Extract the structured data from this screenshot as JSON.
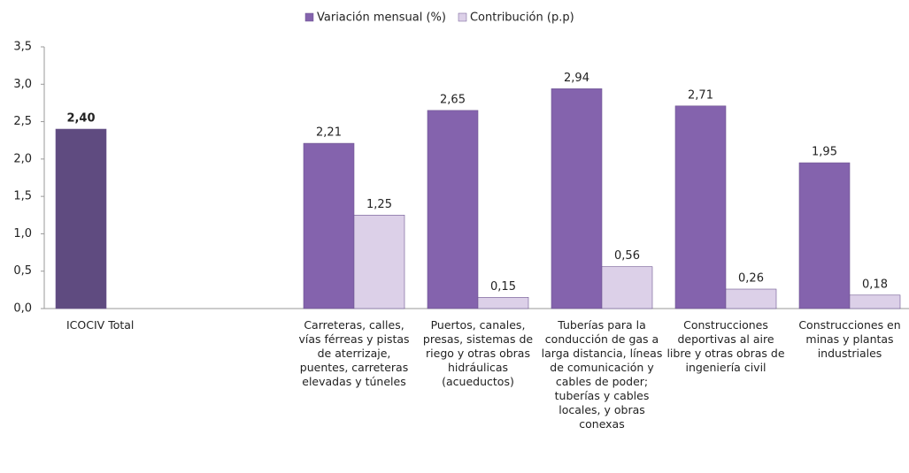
{
  "chart_data": {
    "type": "bar",
    "categories": [
      "ICOCIV Total",
      null,
      "Carreteras, calles, vías férreas y pistas de aterrizaje, puentes, carreteras elevadas y túneles",
      "Puertos, canales, presas, sistemas de riego y otras obras hidráulicas (acueductos)",
      "Tuberías para la conducción de gas a larga distancia, líneas de comunicación y cables de poder; tuberías y cables locales, y obras conexas",
      "Construcciones deportivas al aire libre y otras obras de ingeniería civil",
      "Construcciones  en minas y plantas industriales"
    ],
    "series": [
      {
        "name": "Variación mensual (%)",
        "color": "#8463ad",
        "colors": [
          "#5f4b80",
          "#8463ad",
          "#8463ad",
          "#8463ad",
          "#8463ad",
          "#8463ad",
          "#8463ad"
        ],
        "values": [
          2.4,
          null,
          2.21,
          2.65,
          2.94,
          2.71,
          1.95
        ],
        "value_labels": [
          "2,40",
          null,
          "2,21",
          "2,65",
          "2,94",
          "2,71",
          "1,95"
        ]
      },
      {
        "name": "Contribución (p.p)",
        "color": "#dcd0e8",
        "colors": [
          "#dcd0e8",
          "#dcd0e8",
          "#dcd0e8",
          "#dcd0e8",
          "#dcd0e8",
          "#dcd0e8",
          "#dcd0e8"
        ],
        "values": [
          null,
          null,
          1.25,
          0.15,
          0.56,
          0.26,
          0.18
        ],
        "value_labels": [
          null,
          null,
          "1,25",
          "0,15",
          "0,56",
          "0,26",
          "0,18"
        ]
      }
    ],
    "ylim": [
      0,
      3.5
    ],
    "yticks": [
      {
        "value": 0,
        "label": "0,0"
      },
      {
        "value": 0.5,
        "label": "0,5"
      },
      {
        "value": 1,
        "label": "1,0"
      },
      {
        "value": 1.5,
        "label": "1,5"
      },
      {
        "value": 2,
        "label": "2,0"
      },
      {
        "value": 2.5,
        "label": "2,5"
      },
      {
        "value": 3,
        "label": "3,0"
      },
      {
        "value": 3.5,
        "label": "3,5"
      }
    ],
    "grid": false,
    "legend": "top"
  }
}
